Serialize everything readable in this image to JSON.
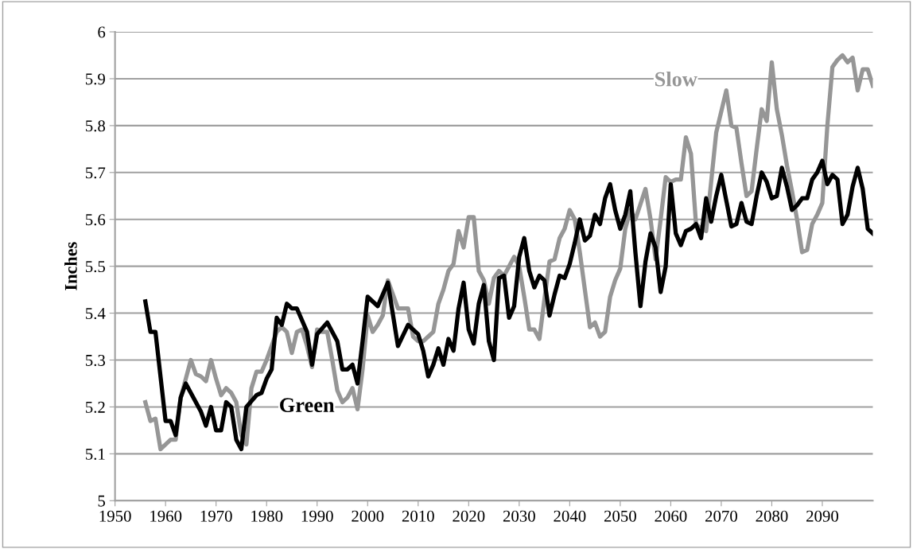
{
  "chart_data": {
    "type": "line",
    "ylabel": "Inches",
    "xlim": [
      1950,
      2100
    ],
    "xticks": [
      1950,
      1960,
      1970,
      1980,
      1990,
      2000,
      2010,
      2020,
      2030,
      2040,
      2050,
      2060,
      2070,
      2080,
      2090
    ],
    "ylim": [
      5,
      6
    ],
    "yticks": [
      5,
      5.1,
      5.2,
      5.3,
      5.4,
      5.5,
      5.6,
      5.7,
      5.8,
      5.9,
      6
    ],
    "grid": "y",
    "marker": "none",
    "line_style": "solid",
    "series": [
      {
        "name": "Slow",
        "color": "#969696",
        "x": [
          1956,
          1957,
          1958,
          1959,
          1960,
          1961,
          1962,
          1963,
          1964,
          1965,
          1966,
          1967,
          1968,
          1969,
          1970,
          1971,
          1972,
          1973,
          1974,
          1975,
          1976,
          1977,
          1978,
          1979,
          1980,
          1981,
          1982,
          1983,
          1984,
          1985,
          1986,
          1987,
          1988,
          1989,
          1990,
          1991,
          1992,
          1993,
          1994,
          1995,
          1996,
          1997,
          1998,
          1999,
          2000,
          2001,
          2002,
          2003,
          2004,
          2005,
          2006,
          2007,
          2008,
          2009,
          2010,
          2011,
          2012,
          2013,
          2014,
          2015,
          2016,
          2017,
          2018,
          2019,
          2020,
          2021,
          2022,
          2023,
          2024,
          2025,
          2026,
          2027,
          2028,
          2029,
          2030,
          2031,
          2032,
          2033,
          2034,
          2035,
          2036,
          2037,
          2038,
          2039,
          2040,
          2041,
          2042,
          2043,
          2044,
          2045,
          2046,
          2047,
          2048,
          2049,
          2050,
          2051,
          2052,
          2053,
          2055,
          2056,
          2057,
          2058,
          2059,
          2060,
          2061,
          2062,
          2063,
          2064,
          2065,
          2066,
          2067,
          2068,
          2069,
          2070,
          2071,
          2072,
          2073,
          2074,
          2075,
          2076,
          2077,
          2078,
          2079,
          2080,
          2081,
          2082,
          2083,
          2084,
          2085,
          2086,
          2087,
          2088,
          2089,
          2090,
          2091,
          2092,
          2093,
          2094,
          2095,
          2096,
          2097,
          2098,
          2099,
          2100
        ],
        "values": [
          5.21,
          5.17,
          5.175,
          5.11,
          5.12,
          5.13,
          5.13,
          5.22,
          5.26,
          5.3,
          5.27,
          5.265,
          5.255,
          5.3,
          5.26,
          5.225,
          5.24,
          5.23,
          5.21,
          5.14,
          5.12,
          5.24,
          5.275,
          5.275,
          5.3,
          5.33,
          5.36,
          5.37,
          5.36,
          5.315,
          5.36,
          5.365,
          5.33,
          5.285,
          5.365,
          5.36,
          5.36,
          5.3,
          5.235,
          5.21,
          5.22,
          5.24,
          5.195,
          5.28,
          5.395,
          5.36,
          5.375,
          5.395,
          5.47,
          5.44,
          5.41,
          5.41,
          5.41,
          5.35,
          5.34,
          5.34,
          5.35,
          5.36,
          5.42,
          5.45,
          5.49,
          5.505,
          5.575,
          5.54,
          5.605,
          5.605,
          5.49,
          5.47,
          5.42,
          5.475,
          5.49,
          5.48,
          5.5,
          5.52,
          5.5,
          5.435,
          5.365,
          5.365,
          5.345,
          5.43,
          5.51,
          5.515,
          5.56,
          5.58,
          5.62,
          5.6,
          5.53,
          5.45,
          5.37,
          5.38,
          5.35,
          5.36,
          5.435,
          5.47,
          5.495,
          5.58,
          5.62,
          5.6,
          5.665,
          5.6,
          5.515,
          5.6,
          5.69,
          5.68,
          5.685,
          5.685,
          5.775,
          5.74,
          5.59,
          5.58,
          5.575,
          5.68,
          5.785,
          5.83,
          5.875,
          5.8,
          5.795,
          5.72,
          5.65,
          5.66,
          5.75,
          5.835,
          5.81,
          5.935,
          5.835,
          5.78,
          5.715,
          5.66,
          5.6,
          5.53,
          5.535,
          5.59,
          5.61,
          5.635,
          5.8,
          5.925,
          5.94,
          5.95,
          5.935,
          5.945,
          5.875,
          5.92,
          5.92,
          5.885
        ]
      },
      {
        "name": "Green",
        "color": "#000000",
        "x": [
          1956,
          1957,
          1958,
          1960,
          1961,
          1962,
          1963,
          1964,
          1966,
          1967,
          1968,
          1969,
          1970,
          1971,
          1972,
          1973,
          1974,
          1975,
          1976,
          1978,
          1979,
          1980,
          1981,
          1982,
          1983,
          1984,
          1985,
          1986,
          1988,
          1989,
          1990,
          1992,
          1994,
          1995,
          1996,
          1997,
          1998,
          1999,
          2000,
          2002,
          2004,
          2006,
          2008,
          2010,
          2011,
          2012,
          2013,
          2014,
          2015,
          2016,
          2017,
          2018,
          2019,
          2020,
          2021,
          2022,
          2023,
          2024,
          2025,
          2026,
          2027,
          2028,
          2029,
          2030,
          2031,
          2032,
          2033,
          2034,
          2035,
          2036,
          2037,
          2038,
          2039,
          2040,
          2041,
          2042,
          2043,
          2044,
          2045,
          2046,
          2047,
          2048,
          2049,
          2050,
          2051,
          2052,
          2053,
          2054,
          2055,
          2056,
          2057,
          2058,
          2059,
          2060,
          2061,
          2062,
          2063,
          2064,
          2065,
          2066,
          2067,
          2068,
          2069,
          2070,
          2071,
          2072,
          2073,
          2074,
          2075,
          2076,
          2077,
          2078,
          2079,
          2080,
          2081,
          2082,
          2083,
          2084,
          2085,
          2086,
          2087,
          2088,
          2089,
          2090,
          2091,
          2092,
          2093,
          2094,
          2095,
          2096,
          2097,
          2098,
          2099,
          2100
        ],
        "values": [
          5.425,
          5.36,
          5.36,
          5.17,
          5.17,
          5.14,
          5.22,
          5.25,
          5.21,
          5.19,
          5.16,
          5.2,
          5.15,
          5.15,
          5.21,
          5.2,
          5.13,
          5.11,
          5.2,
          5.225,
          5.23,
          5.26,
          5.28,
          5.39,
          5.375,
          5.42,
          5.41,
          5.41,
          5.36,
          5.29,
          5.355,
          5.38,
          5.34,
          5.28,
          5.28,
          5.29,
          5.25,
          5.34,
          5.435,
          5.415,
          5.465,
          5.33,
          5.375,
          5.355,
          5.32,
          5.265,
          5.29,
          5.325,
          5.29,
          5.345,
          5.32,
          5.41,
          5.465,
          5.365,
          5.335,
          5.42,
          5.46,
          5.34,
          5.3,
          5.475,
          5.48,
          5.39,
          5.415,
          5.52,
          5.56,
          5.49,
          5.455,
          5.48,
          5.47,
          5.395,
          5.44,
          5.48,
          5.475,
          5.505,
          5.55,
          5.6,
          5.555,
          5.565,
          5.61,
          5.59,
          5.645,
          5.675,
          5.62,
          5.58,
          5.61,
          5.66,
          5.53,
          5.415,
          5.51,
          5.57,
          5.54,
          5.445,
          5.5,
          5.675,
          5.57,
          5.545,
          5.575,
          5.58,
          5.59,
          5.56,
          5.645,
          5.595,
          5.65,
          5.695,
          5.64,
          5.585,
          5.59,
          5.635,
          5.595,
          5.59,
          5.65,
          5.7,
          5.68,
          5.645,
          5.65,
          5.71,
          5.67,
          5.62,
          5.63,
          5.645,
          5.645,
          5.685,
          5.7,
          5.725,
          5.675,
          5.695,
          5.685,
          5.59,
          5.61,
          5.67,
          5.71,
          5.665,
          5.58,
          5.57
        ]
      }
    ]
  }
}
